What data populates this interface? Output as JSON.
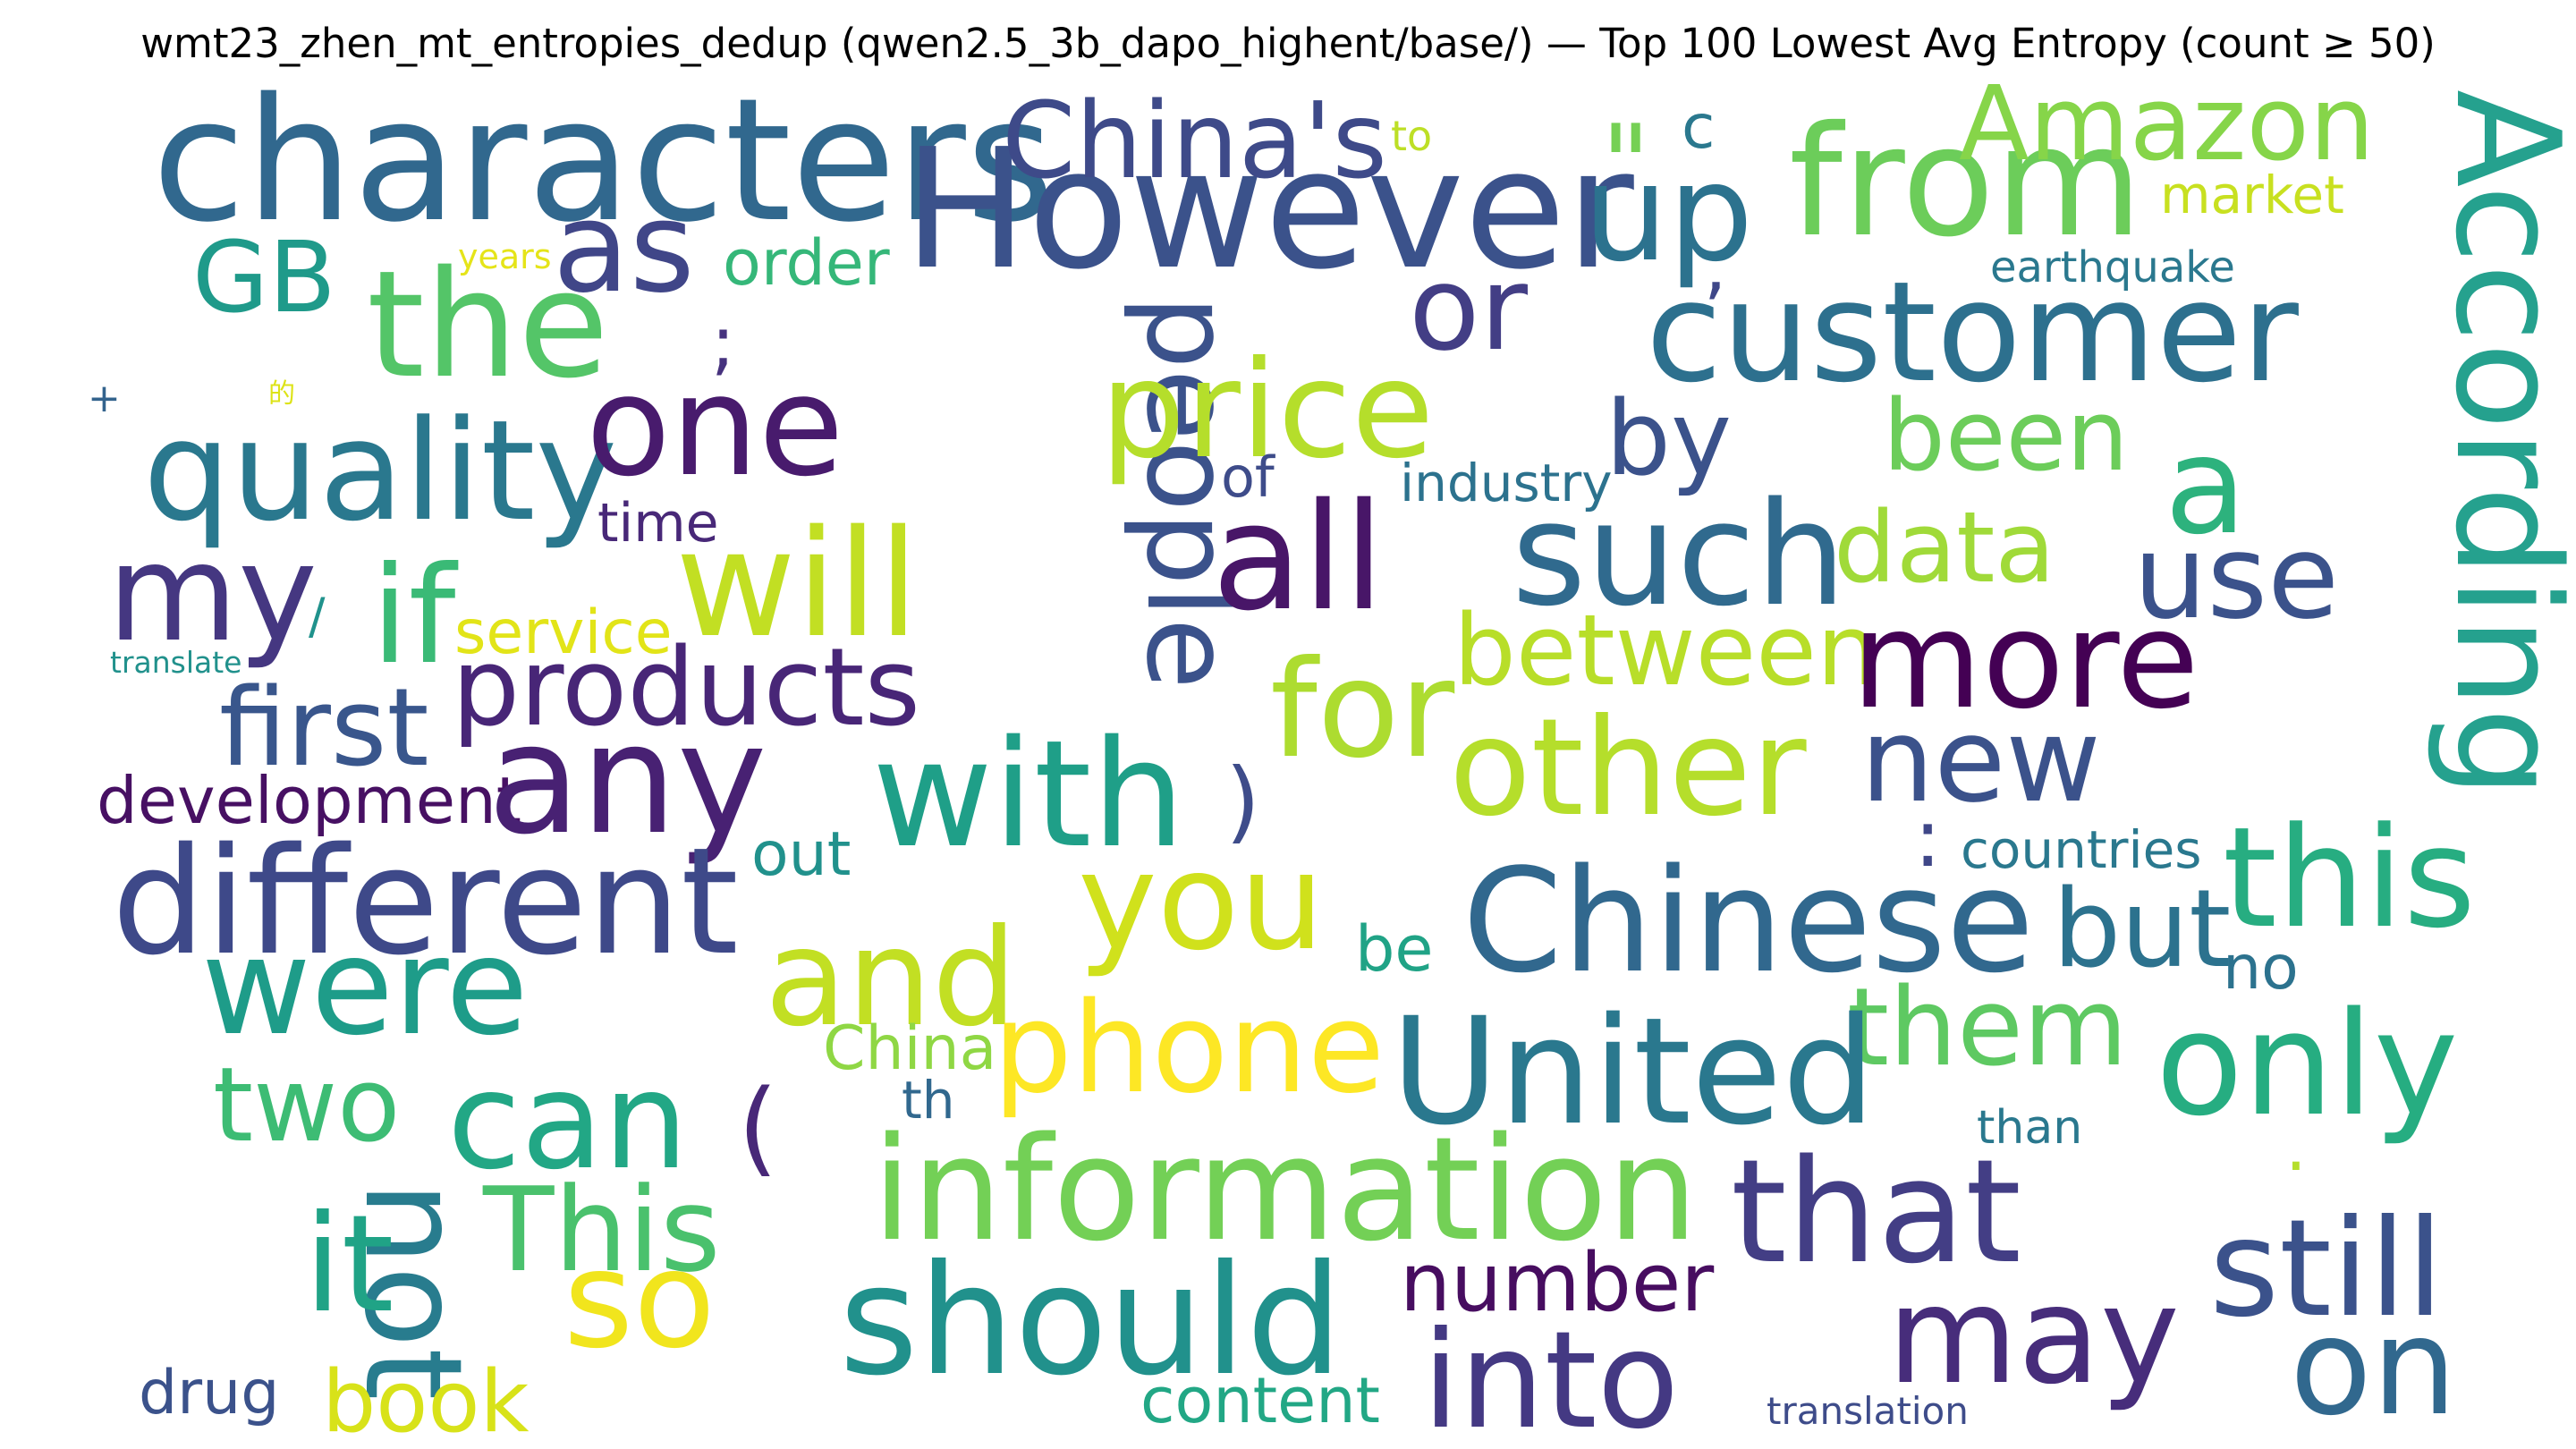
{
  "chart_data": {
    "type": "wordcloud",
    "title": "wmt23_zhen_mt_entropies_dedup (qwen2.5_3b_dapo_highent/base/) — Top 100 Lowest Avg Entropy (count ≥ 50)",
    "words": [
      {
        "text": "characters",
        "color": "#31688e"
      },
      {
        "text": "However",
        "color": "#3b528b"
      },
      {
        "text": "China's",
        "color": "#3e4a89"
      },
      {
        "text": "up",
        "color": "#2c728e"
      },
      {
        "text": "from",
        "color": "#6ccd5a"
      },
      {
        "text": "Amazon",
        "color": "#86d549"
      },
      {
        "text": "According",
        "color": "#25a18e"
      },
      {
        "text": "\"",
        "color": "#75d054"
      },
      {
        "text": "c",
        "color": "#2a788e"
      },
      {
        "text": "to",
        "color": "#bddf26"
      },
      {
        "text": "market",
        "color": "#c8e020"
      },
      {
        "text": "as",
        "color": "#404688"
      },
      {
        "text": "GB",
        "color": "#1f9a8a"
      },
      {
        "text": "years",
        "color": "#e5e419"
      },
      {
        "text": "order",
        "color": "#35b779"
      },
      {
        "text": "the",
        "color": "#54c568"
      },
      {
        "text": ";",
        "color": "#46327e"
      },
      {
        "text": "or",
        "color": "#433e85"
      },
      {
        "text": ",",
        "color": "#3f4788"
      },
      {
        "text": "earthquake",
        "color": "#2a788e"
      },
      {
        "text": "customer",
        "color": "#2d708e"
      },
      {
        "text": "+",
        "color": "#33638d"
      },
      {
        "text": "的",
        "color": "#dde318"
      },
      {
        "text": "quality",
        "color": "#2a788e"
      },
      {
        "text": "one",
        "color": "#481b6d"
      },
      {
        "text": "people",
        "color": "#3b528b"
      },
      {
        "text": "price",
        "color": "#b5de2b"
      },
      {
        "text": "by",
        "color": "#3b528b"
      },
      {
        "text": "been",
        "color": "#6ccd5a"
      },
      {
        "text": "a",
        "color": "#2db27d"
      },
      {
        "text": "of",
        "color": "#3e4c8a"
      },
      {
        "text": "industry",
        "color": "#2c728e"
      },
      {
        "text": "time",
        "color": "#482878"
      },
      {
        "text": "my",
        "color": "#453781"
      },
      {
        "text": "if",
        "color": "#3aba76"
      },
      {
        "text": "will",
        "color": "#c2df23"
      },
      {
        "text": "all",
        "color": "#481668"
      },
      {
        "text": "such",
        "color": "#306a8e"
      },
      {
        "text": "data",
        "color": "#a0da39"
      },
      {
        "text": "use",
        "color": "#3b528b"
      },
      {
        "text": "/",
        "color": "#20928c"
      },
      {
        "text": "translate",
        "color": "#21918c"
      },
      {
        "text": "service",
        "color": "#e2e418"
      },
      {
        "text": "products",
        "color": "#482677"
      },
      {
        "text": "between",
        "color": "#b8de29"
      },
      {
        "text": "more",
        "color": "#440154"
      },
      {
        "text": "first",
        "color": "#39568c"
      },
      {
        "text": "for",
        "color": "#addc30"
      },
      {
        "text": "other",
        "color": "#b5de2b"
      },
      {
        "text": "new",
        "color": "#3b528b"
      },
      {
        "text": "development",
        "color": "#471063"
      },
      {
        "text": "any",
        "color": "#482173"
      },
      {
        "text": "with",
        "color": "#1f9f88"
      },
      {
        "text": ")",
        "color": "#3e4c8a"
      },
      {
        "text": ":",
        "color": "#3f4788"
      },
      {
        "text": "countries",
        "color": "#2a788e"
      },
      {
        "text": "this",
        "color": "#27ad81"
      },
      {
        "text": "out",
        "color": "#21918c"
      },
      {
        "text": "different",
        "color": "#3e4989"
      },
      {
        "text": "you",
        "color": "#d0e11c"
      },
      {
        "text": "Chinese",
        "color": "#31688e"
      },
      {
        "text": "but",
        "color": "#2c728e"
      },
      {
        "text": "be",
        "color": "#20a386"
      },
      {
        "text": "were",
        "color": "#1e9c89"
      },
      {
        "text": "and",
        "color": "#c2df23"
      },
      {
        "text": "no",
        "color": "#2c728e"
      },
      {
        "text": "them",
        "color": "#5ec962"
      },
      {
        "text": "China",
        "color": "#8fd744"
      },
      {
        "text": "phone",
        "color": "#fde725"
      },
      {
        "text": "United",
        "color": "#2a788e"
      },
      {
        "text": "only",
        "color": "#26ad81"
      },
      {
        "text": "two",
        "color": "#3dbc74"
      },
      {
        "text": "can",
        "color": "#22a785"
      },
      {
        "text": "(",
        "color": "#482878"
      },
      {
        "text": "th",
        "color": "#31688e"
      },
      {
        "text": "than",
        "color": "#2a788e"
      },
      {
        "text": ".",
        "color": "#b5de2b"
      },
      {
        "text": "information",
        "color": "#73d056"
      },
      {
        "text": "that",
        "color": "#433e85"
      },
      {
        "text": "not",
        "color": "#287c8e"
      },
      {
        "text": "it",
        "color": "#20a386"
      },
      {
        "text": "This",
        "color": "#4ac16d"
      },
      {
        "text": "still",
        "color": "#3b528b"
      },
      {
        "text": "number",
        "color": "#470d60"
      },
      {
        "text": "so",
        "color": "#f1e51d"
      },
      {
        "text": "should",
        "color": "#21918c"
      },
      {
        "text": "may",
        "color": "#472d7b"
      },
      {
        "text": "on",
        "color": "#31688e"
      },
      {
        "text": "into",
        "color": "#443983"
      },
      {
        "text": "drug",
        "color": "#3b528b"
      },
      {
        "text": "book",
        "color": "#d8e219"
      },
      {
        "text": "content",
        "color": "#22a785"
      },
      {
        "text": "translation",
        "color": "#3e4c8a"
      }
    ]
  }
}
